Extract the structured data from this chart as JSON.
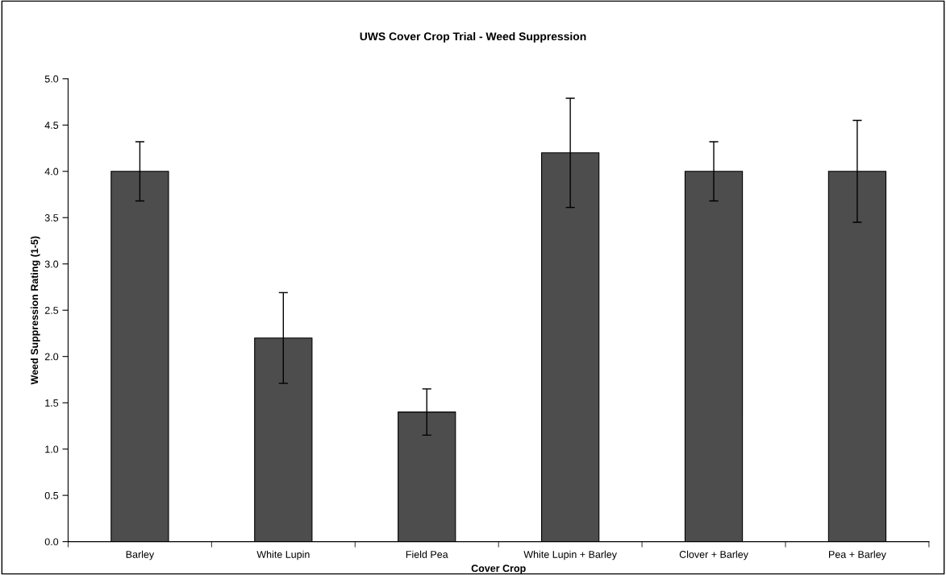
{
  "chart_data": {
    "type": "bar",
    "title": "UWS Cover Crop Trial - Weed Suppression",
    "xlabel": "Cover Crop",
    "ylabel": "Weed Suppression Rating (1-5)",
    "categories": [
      "Barley",
      "White Lupin",
      "Field Pea",
      "White Lupin + Barley",
      "Clover + Barley",
      "Pea + Barley"
    ],
    "values": [
      4.0,
      2.2,
      1.4,
      4.2,
      4.0,
      4.0
    ],
    "errors": [
      0.32,
      0.49,
      0.25,
      0.59,
      0.32,
      0.55
    ],
    "color": "#4d4d4d",
    "ylim": [
      0,
      5
    ],
    "yticks": [
      {
        "value": 0,
        "label": "0.0"
      },
      {
        "value": 0.5,
        "label": "0.5"
      },
      {
        "value": 1,
        "label": "1.0"
      },
      {
        "value": 1.5,
        "label": "1.5"
      },
      {
        "value": 2,
        "label": "2.0"
      },
      {
        "value": 2.5,
        "label": "2.5"
      },
      {
        "value": 3,
        "label": "3.0"
      },
      {
        "value": 3.5,
        "label": "3.5"
      },
      {
        "value": 4,
        "label": "4.0"
      },
      {
        "value": 4.5,
        "label": "4.5"
      },
      {
        "value": 5,
        "label": "5.0"
      }
    ],
    "grid": false
  }
}
